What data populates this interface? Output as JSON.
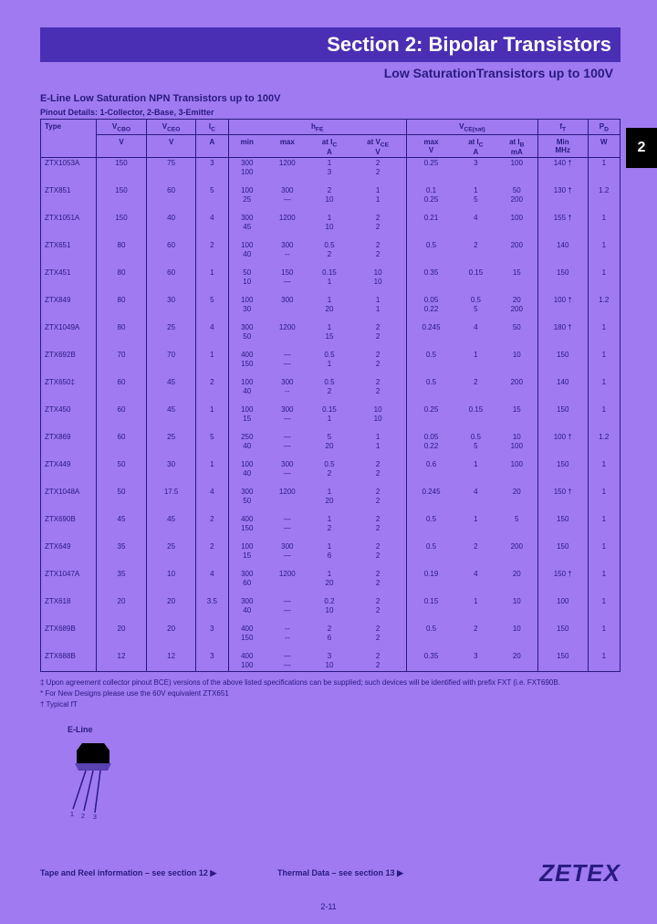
{
  "page": {
    "header_title": "Section 2: Bipolar Transistors",
    "sub_header": "Low SaturationTransistors up to 100V",
    "tab_label": "2",
    "section_title": "E-Line Low Saturation NPN Transistors up to 100V",
    "pinout_title": "Pinout Details: 1-Collector, 2-Base, 3-Emitter",
    "page_number": "2-11",
    "brand": "ZETEX",
    "colors": {
      "page_bg": "#9f7af0",
      "header_bg": "#4a2fb5",
      "text": "#2a1a80"
    }
  },
  "table": {
    "header": {
      "type": "Type",
      "vcbo": "V",
      "vcbo_sym": "V_CBO",
      "vceo": "V",
      "vceo_sym": "V_CEO",
      "ic": "A",
      "ic_sym": "I_C",
      "hfe": "h_FE",
      "hfe_min": "min",
      "hfe_max": "max",
      "hfe_at_ic": "at I_C",
      "hfe_at_ic_u": "A",
      "hfe_at_vce": "at V_CE",
      "hfe_at_vce_u": "V",
      "vcesat": "V_CE(sat)",
      "vcesat_max": "max",
      "vcesat_max_u": "V",
      "vcesat_at_ic": "at I_C",
      "vcesat_at_ic_u": "A",
      "vcesat_at_ib": "at I_B",
      "vcesat_at_ib_u": "mA",
      "ft": "f_T",
      "ft_min": "Min",
      "ft_u": "MHz",
      "pd": "P_D",
      "pd_u": "W"
    },
    "rows": [
      {
        "type": "ZTX1053A",
        "vcbo": "150",
        "vceo": "75",
        "ic": "3",
        "hfe_min": "300\n100",
        "hfe_max": "1200",
        "at_ic": "1\n3",
        "at_vce": "2\n2",
        "vcesat_max": "0.25",
        "vcesat_ic": "3",
        "vcesat_ib": "100",
        "ft": "140 †",
        "pd": "1"
      },
      {
        "type": "ZTX851",
        "vcbo": "150",
        "vceo": "60",
        "ic": "5",
        "hfe_min": "100\n25",
        "hfe_max": "300\n—",
        "at_ic": "2\n10",
        "at_vce": "1\n1",
        "vcesat_max": "0.1\n0.25",
        "vcesat_ic": "1\n5",
        "vcesat_ib": "50\n200",
        "ft": "130 †",
        "pd": "1.2"
      },
      {
        "type": "ZTX1051A",
        "vcbo": "150",
        "vceo": "40",
        "ic": "4",
        "hfe_min": "300\n45",
        "hfe_max": "1200",
        "at_ic": "1\n10",
        "at_vce": "2\n2",
        "vcesat_max": "0.21",
        "vcesat_ic": "4",
        "vcesat_ib": "100",
        "ft": "155 †",
        "pd": "1"
      },
      {
        "type": "ZTX651",
        "vcbo": "80",
        "vceo": "60",
        "ic": "2",
        "hfe_min": "100\n40",
        "hfe_max": "300\n--",
        "at_ic": "0.5\n2",
        "at_vce": "2\n2",
        "vcesat_max": "0.5",
        "vcesat_ic": "2",
        "vcesat_ib": "200",
        "ft": "140",
        "pd": "1"
      },
      {
        "type": "ZTX451",
        "vcbo": "80",
        "vceo": "60",
        "ic": "1",
        "hfe_min": "50\n10",
        "hfe_max": "150\n—",
        "at_ic": "0.15\n1",
        "at_vce": "10\n10",
        "vcesat_max": "0.35",
        "vcesat_ic": "0.15",
        "vcesat_ib": "15",
        "ft": "150",
        "pd": "1"
      },
      {
        "type": "ZTX849",
        "vcbo": "80",
        "vceo": "30",
        "ic": "5",
        "hfe_min": "100\n30",
        "hfe_max": "300",
        "at_ic": "1\n20",
        "at_vce": "1\n1",
        "vcesat_max": "0.05\n0.22",
        "vcesat_ic": "0.5\n5",
        "vcesat_ib": "20\n200",
        "ft": "100 †",
        "pd": "1.2"
      },
      {
        "type": "ZTX1049A",
        "vcbo": "80",
        "vceo": "25",
        "ic": "4",
        "hfe_min": "300\n50",
        "hfe_max": "1200",
        "at_ic": "1\n15",
        "at_vce": "2\n2",
        "vcesat_max": "0.245",
        "vcesat_ic": "4",
        "vcesat_ib": "50",
        "ft": "180 †",
        "pd": "1"
      },
      {
        "type": "ZTX692B",
        "vcbo": "70",
        "vceo": "70",
        "ic": "1",
        "hfe_min": "400\n150",
        "hfe_max": "—\n—",
        "at_ic": "0.5\n1",
        "at_vce": "2\n2",
        "vcesat_max": "0.5",
        "vcesat_ic": "1",
        "vcesat_ib": "10",
        "ft": "150",
        "pd": "1"
      },
      {
        "type": "ZTX650‡",
        "vcbo": "60",
        "vceo": "45",
        "ic": "2",
        "hfe_min": "100\n40",
        "hfe_max": "300\n--",
        "at_ic": "0.5\n2",
        "at_vce": "2\n2",
        "vcesat_max": "0.5",
        "vcesat_ic": "2",
        "vcesat_ib": "200",
        "ft": "140",
        "pd": "1"
      },
      {
        "type": "ZTX450",
        "vcbo": "60",
        "vceo": "45",
        "ic": "1",
        "hfe_min": "100\n15",
        "hfe_max": "300\n—",
        "at_ic": "0.15\n1",
        "at_vce": "10\n10",
        "vcesat_max": "0.25",
        "vcesat_ic": "0.15",
        "vcesat_ib": "15",
        "ft": "150",
        "pd": "1"
      },
      {
        "type": "ZTX869",
        "vcbo": "60",
        "vceo": "25",
        "ic": "5",
        "hfe_min": "250\n40",
        "hfe_max": "—\n—",
        "at_ic": "5\n20",
        "at_vce": "1\n1",
        "vcesat_max": "0.05\n0.22",
        "vcesat_ic": "0.5\n5",
        "vcesat_ib": "10\n100",
        "ft": "100 †",
        "pd": "1.2"
      },
      {
        "type": "ZTX449",
        "vcbo": "50",
        "vceo": "30",
        "ic": "1",
        "hfe_min": "100\n40",
        "hfe_max": "300\n—",
        "at_ic": "0.5\n2",
        "at_vce": "2\n2",
        "vcesat_max": "0.6",
        "vcesat_ic": "1",
        "vcesat_ib": "100",
        "ft": "150",
        "pd": "1"
      },
      {
        "type": "ZTX1048A",
        "vcbo": "50",
        "vceo": "17.5",
        "ic": "4",
        "hfe_min": "300\n50",
        "hfe_max": "1200",
        "at_ic": "1\n20",
        "at_vce": "2\n2",
        "vcesat_max": "0.245",
        "vcesat_ic": "4",
        "vcesat_ib": "20",
        "ft": "150 †",
        "pd": "1"
      },
      {
        "type": "ZTX690B",
        "vcbo": "45",
        "vceo": "45",
        "ic": "2",
        "hfe_min": "400\n150",
        "hfe_max": "—\n—",
        "at_ic": "1\n2",
        "at_vce": "2\n2",
        "vcesat_max": "0.5",
        "vcesat_ic": "1",
        "vcesat_ib": "5",
        "ft": "150",
        "pd": "1"
      },
      {
        "type": "ZTX649",
        "vcbo": "35",
        "vceo": "25",
        "ic": "2",
        "hfe_min": "100\n15",
        "hfe_max": "300\n—",
        "at_ic": "1\n6",
        "at_vce": "2\n2",
        "vcesat_max": "0.5",
        "vcesat_ic": "2",
        "vcesat_ib": "200",
        "ft": "150",
        "pd": "1"
      },
      {
        "type": "ZTX1047A",
        "vcbo": "35",
        "vceo": "10",
        "ic": "4",
        "hfe_min": "300\n60",
        "hfe_max": "1200",
        "at_ic": "1\n20",
        "at_vce": "2\n2",
        "vcesat_max": "0.19",
        "vcesat_ic": "4",
        "vcesat_ib": "20",
        "ft": "150 †",
        "pd": "1"
      },
      {
        "type": "ZTX618",
        "vcbo": "20",
        "vceo": "20",
        "ic": "3.5",
        "hfe_min": "300\n40",
        "hfe_max": "—\n—",
        "at_ic": "0.2\n10",
        "at_vce": "2\n2",
        "vcesat_max": "0.15",
        "vcesat_ic": "1",
        "vcesat_ib": "10",
        "ft": "100",
        "pd": "1"
      },
      {
        "type": "ZTX689B",
        "vcbo": "20",
        "vceo": "20",
        "ic": "3",
        "hfe_min": "400\n150",
        "hfe_max": "--\n--",
        "at_ic": "2\n6",
        "at_vce": "2\n2",
        "vcesat_max": "0.5",
        "vcesat_ic": "2",
        "vcesat_ib": "10",
        "ft": "150",
        "pd": "1"
      },
      {
        "type": "ZTX688B",
        "vcbo": "12",
        "vceo": "12",
        "ic": "3",
        "hfe_min": "400\n100",
        "hfe_max": "—\n—",
        "at_ic": "3\n10",
        "at_vce": "2\n2",
        "vcesat_max": "0.35",
        "vcesat_ic": "3",
        "vcesat_ib": "20",
        "ft": "150",
        "pd": "1"
      }
    ]
  },
  "footnotes": {
    "n1": "‡ Upon agreement collector pinout BCE) versions of the above listed specifications can be supplied; such devices will be identified with prefix FXT (i.e. FXT690B.",
    "n2": "* For New Designs please use the 60V equivalent ZTX651",
    "n3": "† Typical fT"
  },
  "bottom": {
    "tape": "Tape and Reel information – see section 12 ▶",
    "thermal": "Thermal Data – see section 13 ▶",
    "eline_label": "E-Line"
  }
}
